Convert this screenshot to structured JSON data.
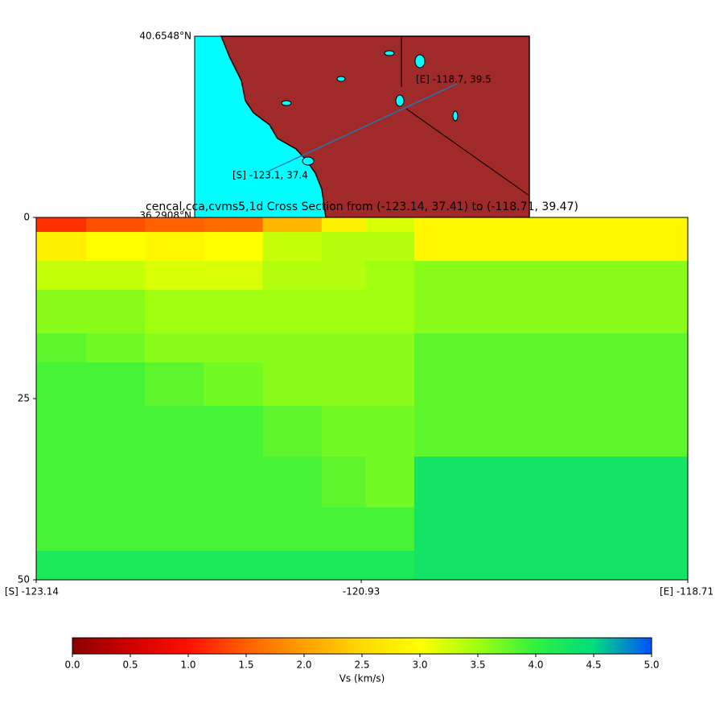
{
  "map": {
    "lat_top": "40.6548°N",
    "lat_bottom": "36.2908°N",
    "start_label": "[S] -123.1, 37.4",
    "end_label": "[E] -118.7, 39.5"
  },
  "chart_data": {
    "type": "heatmap",
    "title": "cencal,cca,cvms5,1d Cross Section from (-123.14, 37.41) to (-118.71, 39.47)",
    "xlim": [
      -123.14,
      -118.71
    ],
    "xticks": [
      {
        "value": -123.14,
        "label": "[S] -123.14"
      },
      -120.93,
      {
        "value": -118.71,
        "label": "[E] -118.71"
      }
    ],
    "ylim": [
      0,
      50
    ],
    "y_inverted": true,
    "yticks": [
      0,
      25,
      50
    ],
    "xbins": [
      -123.14,
      -122.8,
      -122.4,
      -122.0,
      -121.6,
      -121.2,
      -120.9,
      -120.57,
      -120.2,
      -119.5,
      -118.71
    ],
    "ybins": [
      0,
      2,
      6,
      10,
      16,
      20,
      26,
      33,
      40,
      46,
      50
    ],
    "values": [
      [
        1.2,
        1.4,
        1.5,
        1.6,
        2.2,
        2.8,
        3.2,
        2.9,
        2.9,
        2.9
      ],
      [
        2.8,
        3.0,
        2.9,
        3.0,
        3.3,
        3.4,
        3.4,
        2.9,
        2.9,
        2.9
      ],
      [
        3.3,
        3.3,
        3.2,
        3.2,
        3.4,
        3.4,
        3.5,
        3.6,
        3.6,
        3.6
      ],
      [
        3.6,
        3.6,
        3.5,
        3.5,
        3.5,
        3.5,
        3.5,
        3.6,
        3.6,
        3.6
      ],
      [
        3.8,
        3.7,
        3.6,
        3.6,
        3.6,
        3.6,
        3.6,
        3.8,
        3.8,
        3.8
      ],
      [
        3.9,
        3.9,
        3.8,
        3.7,
        3.6,
        3.6,
        3.6,
        3.8,
        3.8,
        3.8
      ],
      [
        3.9,
        3.9,
        3.9,
        3.9,
        3.8,
        3.7,
        3.7,
        3.8,
        3.8,
        3.8
      ],
      [
        3.9,
        3.9,
        3.9,
        3.9,
        3.9,
        3.8,
        3.7,
        4.3,
        4.3,
        4.3
      ],
      [
        3.9,
        3.9,
        3.9,
        3.9,
        3.9,
        3.9,
        3.9,
        4.3,
        4.3,
        4.3
      ],
      [
        4.2,
        4.2,
        4.2,
        4.2,
        4.2,
        4.2,
        4.2,
        4.3,
        4.3,
        4.3
      ]
    ],
    "clim": [
      0,
      5
    ],
    "colormap": [
      "#8b0000",
      "#d00000",
      "#ff1000",
      "#ff6000",
      "#ffa000",
      "#ffd800",
      "#ffff00",
      "#a0ff10",
      "#30f040",
      "#00dc80",
      "#0050ff"
    ],
    "colorbar": {
      "label": "Vs (km/s)",
      "ticks": [
        {
          "value": 0,
          "label": "0.0"
        },
        0.5,
        {
          "value": 1,
          "label": "1.0"
        },
        1.5,
        {
          "value": 2,
          "label": "2.0"
        },
        2.5,
        {
          "value": 3,
          "label": "3.0"
        },
        3.5,
        {
          "value": 4,
          "label": "4.0"
        },
        4.5,
        {
          "value": 5,
          "label": "5.0"
        }
      ]
    }
  }
}
